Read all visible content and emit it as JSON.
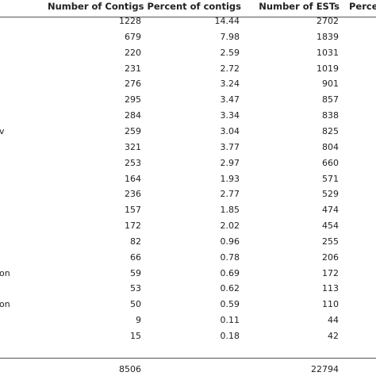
{
  "table": {
    "header": [
      "Number of Contigs",
      "Percent of contigs",
      "Number of ESTs",
      "Perce"
    ],
    "rows": [
      [
        null,
        "1228",
        "14.44",
        "2702"
      ],
      [
        null,
        "679",
        "7.98",
        "1839"
      ],
      [
        null,
        "220",
        "2.59",
        "1031"
      ],
      [
        null,
        "231",
        "2.72",
        "1019"
      ],
      [
        null,
        "276",
        "3.24",
        "901"
      ],
      [
        null,
        "295",
        "3.47",
        "857"
      ],
      [
        null,
        "284",
        "3.34",
        "838"
      ],
      [
        "v",
        "259",
        "3.04",
        "825"
      ],
      [
        null,
        "321",
        "3.77",
        "804"
      ],
      [
        null,
        "253",
        "2.97",
        "660"
      ],
      [
        null,
        "164",
        "1.93",
        "571"
      ],
      [
        null,
        "236",
        "2.77",
        "529"
      ],
      [
        null,
        "157",
        "1.85",
        "474"
      ],
      [
        null,
        "172",
        "2.02",
        "454"
      ],
      [
        null,
        "82",
        "0.96",
        "255"
      ],
      [
        null,
        "66",
        "0.78",
        "206"
      ],
      [
        "on",
        "59",
        "0.69",
        "172"
      ],
      [
        null,
        "53",
        "0.62",
        "113"
      ],
      [
        "on",
        "50",
        "0.59",
        "110"
      ],
      [
        null,
        "9",
        "0.11",
        "44"
      ],
      [
        null,
        "15",
        "0.18",
        "42"
      ]
    ],
    "total": [
      "8506",
      "22794"
    ]
  }
}
